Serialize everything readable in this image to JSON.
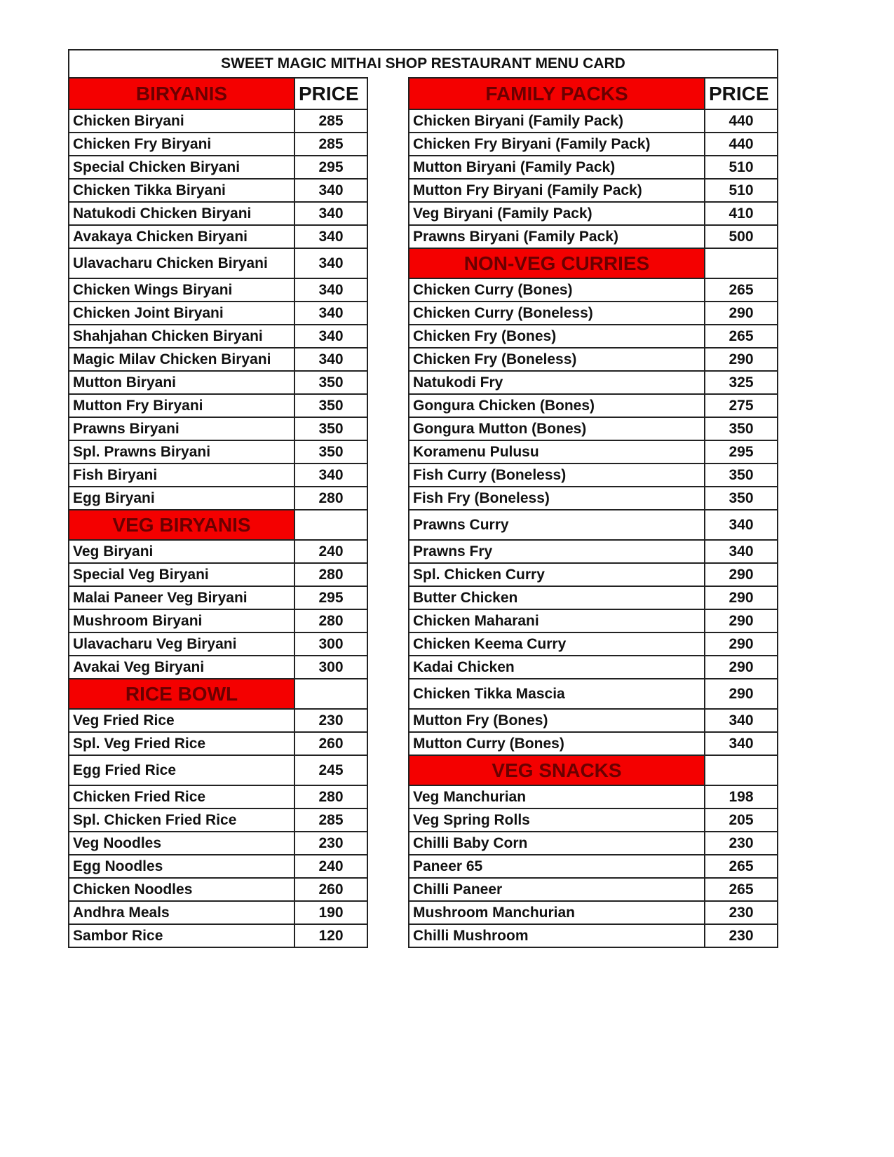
{
  "title": "SWEET MAGIC MITHAI SHOP RESTAURANT MENU CARD",
  "colors": {
    "section_bg": "#f40000",
    "section_text": "#6a0000",
    "border": "#222222"
  },
  "price_label": "PRICE",
  "left": {
    "header": "BIRYANIS",
    "rows": [
      {
        "name": "Chicken Biryani",
        "price": "285"
      },
      {
        "name": "Chicken Fry Biryani",
        "price": "285"
      },
      {
        "name": "Special Chicken Biryani",
        "price": "295"
      },
      {
        "name": "Chicken Tikka  Biryani",
        "price": "340"
      },
      {
        "name": "Natukodi Chicken Biryani",
        "price": "340"
      },
      {
        "name": "Avakaya  Chicken Biryani",
        "price": "340"
      },
      {
        "name": "Ulavacharu Chicken Biryani",
        "price": "340"
      },
      {
        "name": "Chicken Wings Biryani",
        "price": "340"
      },
      {
        "name": "Chicken Joint Biryani",
        "price": "340"
      },
      {
        "name": "Shahjahan Chicken Biryani",
        "price": "340"
      },
      {
        "name": "Magic Milav Chicken Biryani",
        "price": "340"
      },
      {
        "name": "Mutton Biryani",
        "price": "350"
      },
      {
        "name": "Mutton Fry Biryani",
        "price": "350"
      },
      {
        "name": "Prawns Biryani",
        "price": "350"
      },
      {
        "name": "Spl. Prawns Biryani",
        "price": "350"
      },
      {
        "name": "Fish Biryani",
        "price": "340"
      },
      {
        "name": "Egg Biryani",
        "price": "280"
      },
      {
        "section": "VEG BIRYANIS"
      },
      {
        "name": "Veg Biryani",
        "price": "240"
      },
      {
        "name": "Special Veg Biryani",
        "price": "280"
      },
      {
        "name": "Malai Paneer Veg Biryani",
        "price": "295"
      },
      {
        "name": "Mushroom Biryani",
        "price": "280"
      },
      {
        "name": "Ulavacharu Veg Biryani",
        "price": "300"
      },
      {
        "name": "Avakai Veg Biryani",
        "price": "300"
      },
      {
        "section": "RICE BOWL"
      },
      {
        "name": "Veg Fried Rice",
        "price": "230"
      },
      {
        "name": "Spl. Veg Fried Rice",
        "price": "260"
      },
      {
        "name": "Egg Fried Rice",
        "price": "245"
      },
      {
        "name": "Chicken Fried Rice",
        "price": "280"
      },
      {
        "name": "Spl. Chicken Fried Rice",
        "price": "285"
      },
      {
        "name": "Veg Noodles",
        "price": "230"
      },
      {
        "name": "Egg Noodles",
        "price": "240"
      },
      {
        "name": "Chicken Noodles",
        "price": "260"
      },
      {
        "name": "Andhra Meals",
        "price": "190"
      },
      {
        "name": "Sambor Rice",
        "price": "120"
      }
    ]
  },
  "right": {
    "header": "FAMILY PACKS",
    "rows": [
      {
        "name": "Chicken Biryani (Family Pack)",
        "price": "440"
      },
      {
        "name": "Chicken Fry Biryani  (Family Pack)",
        "price": "440"
      },
      {
        "name": "Mutton Biryani  (Family Pack)",
        "price": "510"
      },
      {
        "name": "Mutton Fry Biryani  (Family Pack)",
        "price": "510"
      },
      {
        "name": "Veg Biryani  (Family Pack)",
        "price": "410"
      },
      {
        "name": "Prawns Biryani  (Family Pack)",
        "price": "500"
      },
      {
        "section": "NON-VEG CURRIES"
      },
      {
        "name": "Chicken Curry (Bones)",
        "price": "265"
      },
      {
        "name": "Chicken Curry (Boneless)",
        "price": "290"
      },
      {
        "name": "Chicken Fry (Bones)",
        "price": "265"
      },
      {
        "name": "Chicken Fry (Boneless)",
        "price": "290"
      },
      {
        "name": "Natukodi Fry",
        "price": "325"
      },
      {
        "name": "Gongura Chicken (Bones)",
        "price": "275"
      },
      {
        "name": "Gongura Mutton (Bones)",
        "price": "350"
      },
      {
        "name": "Koramenu Pulusu",
        "price": "295"
      },
      {
        "name": "Fish Curry (Boneless)",
        "price": "350"
      },
      {
        "name": "Fish Fry (Boneless)",
        "price": "350"
      },
      {
        "name": "Prawns Curry",
        "price": "340"
      },
      {
        "name": "Prawns Fry",
        "price": "340"
      },
      {
        "name": "Spl. Chicken Curry",
        "price": "290"
      },
      {
        "name": "Butter Chicken",
        "price": "290"
      },
      {
        "name": "Chicken Maharani",
        "price": "290"
      },
      {
        "name": "Chicken Keema Curry",
        "price": "290"
      },
      {
        "name": "Kadai Chicken",
        "price": "290"
      },
      {
        "name": "Chicken Tikka Mascia",
        "price": "290"
      },
      {
        "name": "Mutton Fry (Bones)",
        "price": "340"
      },
      {
        "name": "Mutton Curry (Bones)",
        "price": "340"
      },
      {
        "section": "VEG SNACKS"
      },
      {
        "name": "Veg Manchurian",
        "price": "198"
      },
      {
        "name": "Veg Spring Rolls",
        "price": "205"
      },
      {
        "name": "Chilli Baby Corn",
        "price": "230"
      },
      {
        "name": "Paneer 65",
        "price": "265"
      },
      {
        "name": "Chilli Paneer",
        "price": "265"
      },
      {
        "name": "Mushroom Manchurian",
        "price": "230"
      },
      {
        "name": "Chilli Mushroom",
        "price": "230"
      }
    ]
  }
}
